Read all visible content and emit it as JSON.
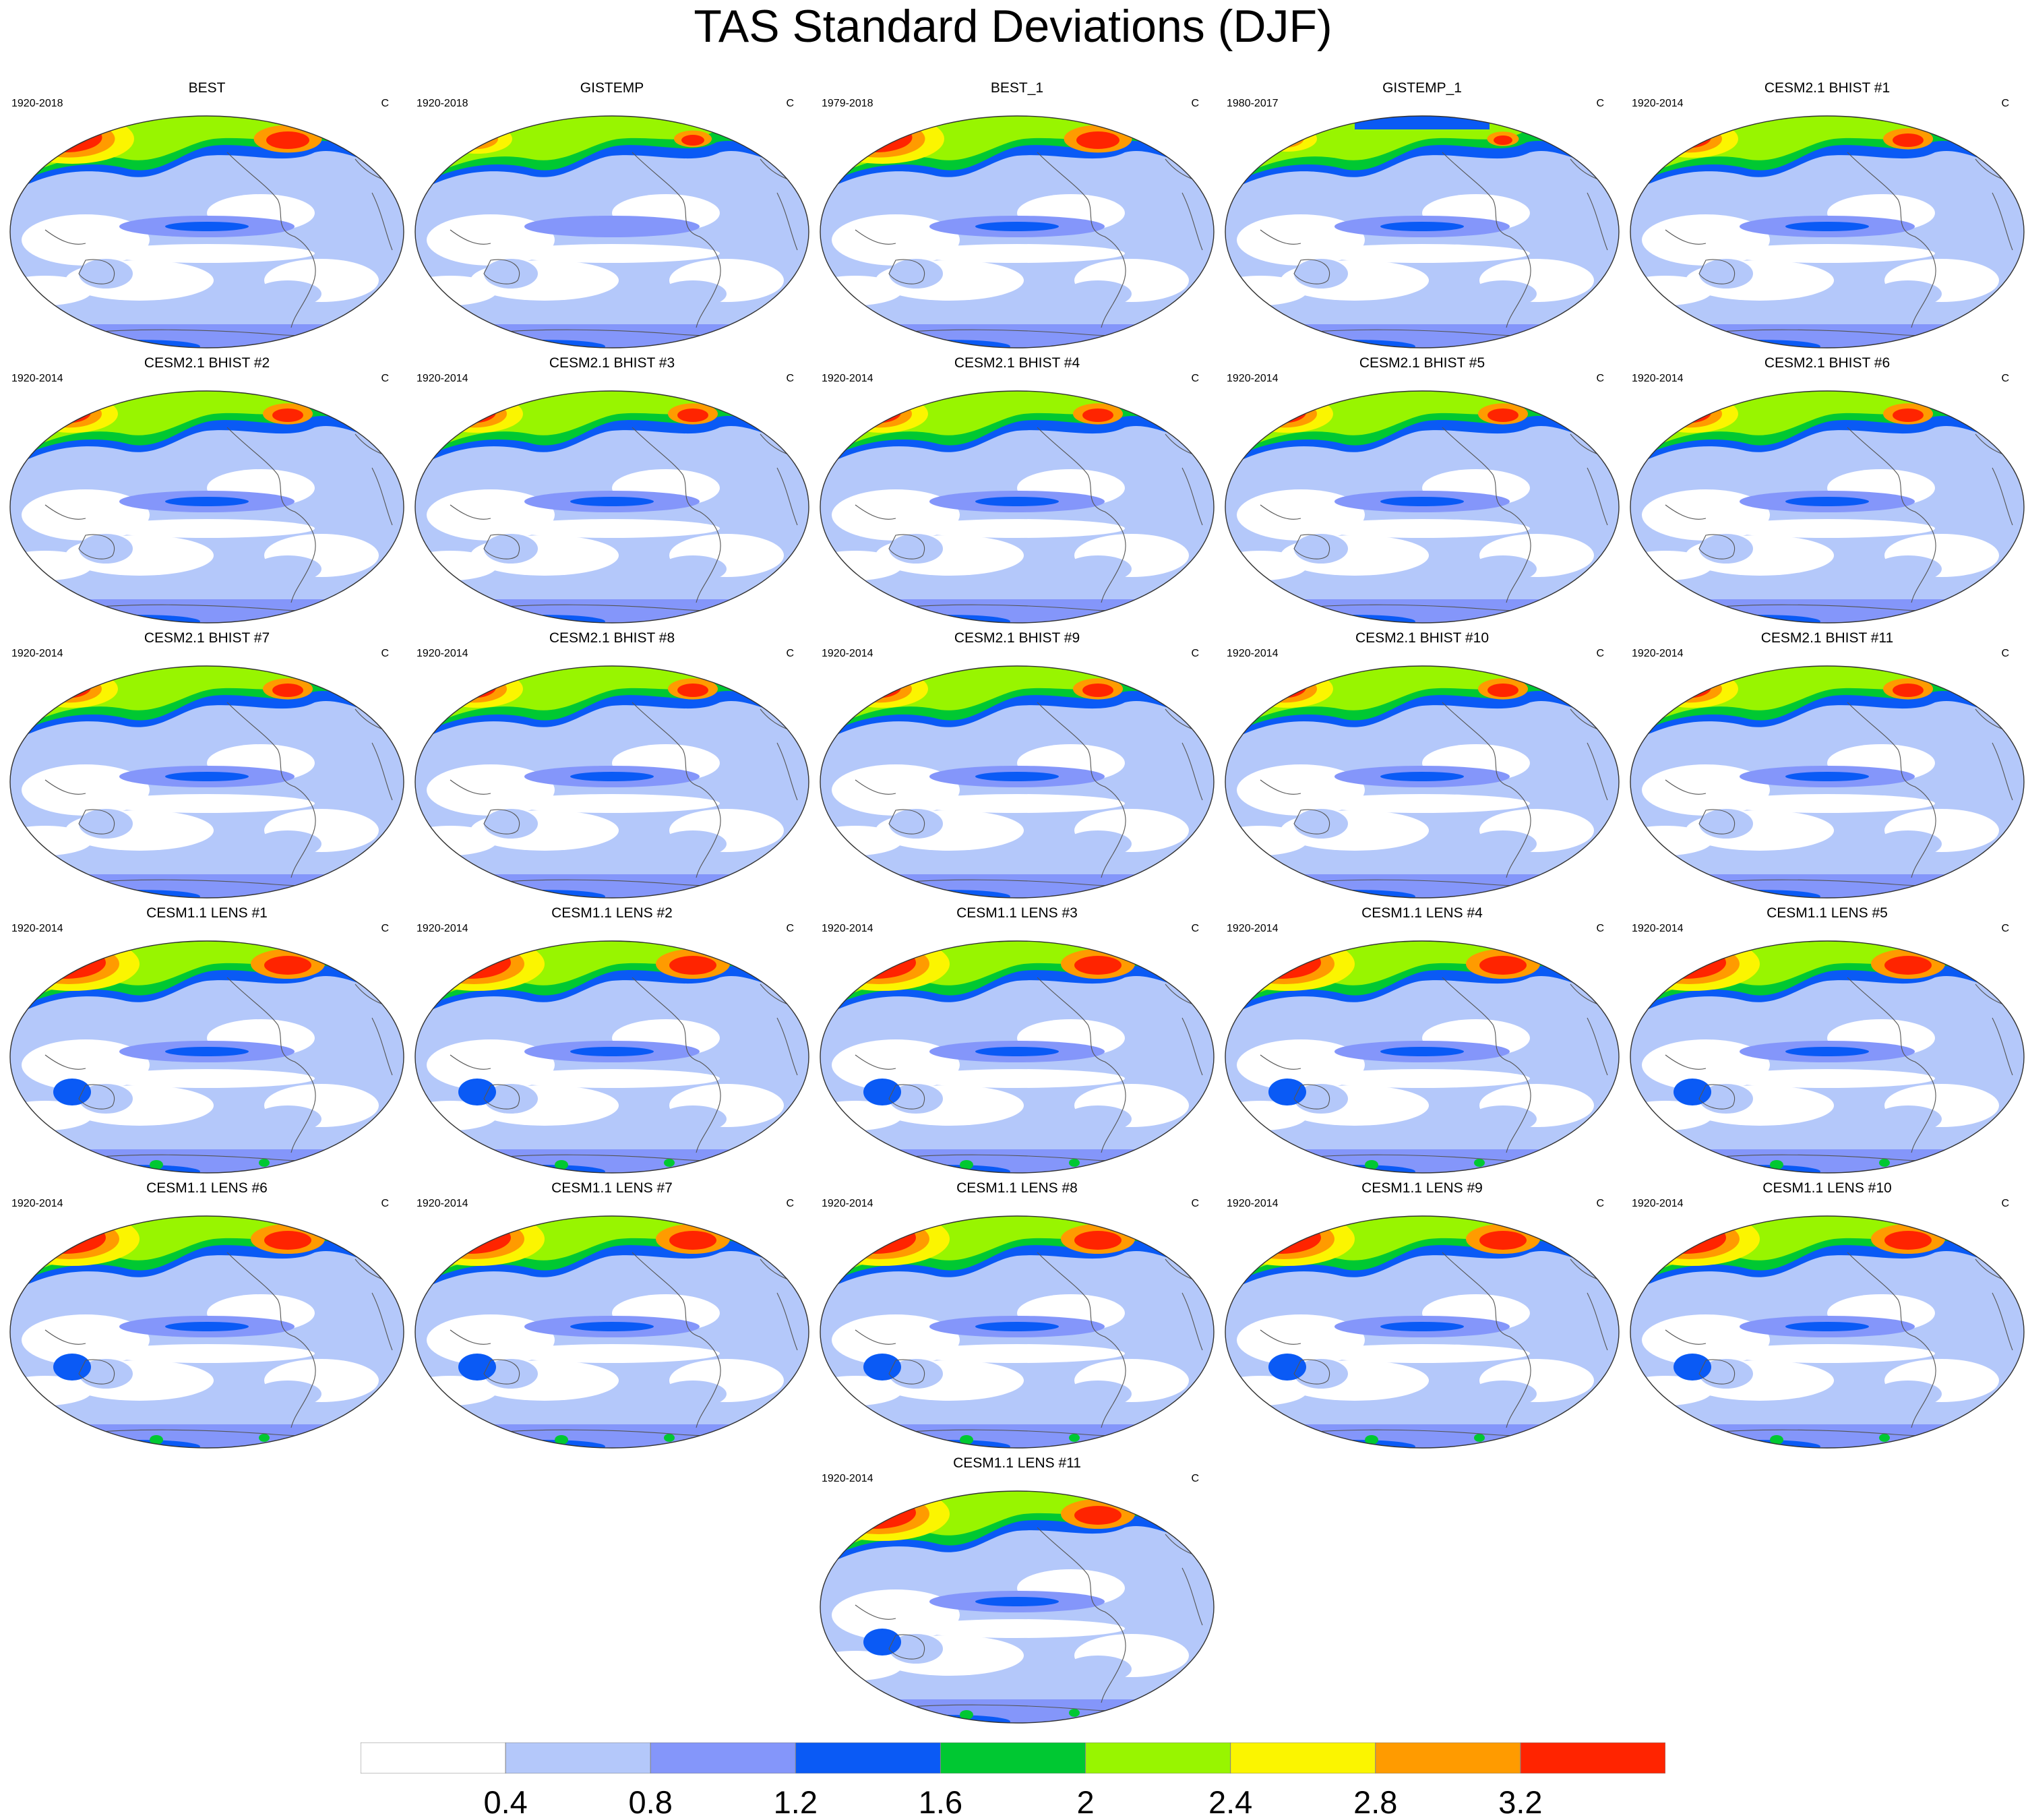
{
  "title": "TAS Standard Deviations (DJF)",
  "unit_label": "C",
  "panels": [
    {
      "title": "BEST",
      "period": "1920-2018",
      "pattern": "obs1"
    },
    {
      "title": "GISTEMP",
      "period": "1920-2018",
      "pattern": "obs2"
    },
    {
      "title": "BEST_1",
      "period": "1979-2018",
      "pattern": "obs1"
    },
    {
      "title": "GISTEMP_1",
      "period": "1980-2017",
      "pattern": "obs3"
    },
    {
      "title": "CESM2.1 BHIST #1",
      "period": "1920-2014",
      "pattern": "cesm2"
    },
    {
      "title": "CESM2.1 BHIST #2",
      "period": "1920-2014",
      "pattern": "cesm2"
    },
    {
      "title": "CESM2.1 BHIST #3",
      "period": "1920-2014",
      "pattern": "cesm2"
    },
    {
      "title": "CESM2.1 BHIST #4",
      "period": "1920-2014",
      "pattern": "cesm2"
    },
    {
      "title": "CESM2.1 BHIST #5",
      "period": "1920-2014",
      "pattern": "cesm2"
    },
    {
      "title": "CESM2.1 BHIST #6",
      "period": "1920-2014",
      "pattern": "cesm2"
    },
    {
      "title": "CESM2.1 BHIST #7",
      "period": "1920-2014",
      "pattern": "cesm2"
    },
    {
      "title": "CESM2.1 BHIST #8",
      "period": "1920-2014",
      "pattern": "cesm2"
    },
    {
      "title": "CESM2.1 BHIST #9",
      "period": "1920-2014",
      "pattern": "cesm2"
    },
    {
      "title": "CESM2.1 BHIST #10",
      "period": "1920-2014",
      "pattern": "cesm2"
    },
    {
      "title": "CESM2.1 BHIST #11",
      "period": "1920-2014",
      "pattern": "cesm2"
    },
    {
      "title": "CESM1.1 LENS #1",
      "period": "1920-2014",
      "pattern": "lens"
    },
    {
      "title": "CESM1.1 LENS #2",
      "period": "1920-2014",
      "pattern": "lens"
    },
    {
      "title": "CESM1.1 LENS #3",
      "period": "1920-2014",
      "pattern": "lens"
    },
    {
      "title": "CESM1.1 LENS #4",
      "period": "1920-2014",
      "pattern": "lens"
    },
    {
      "title": "CESM1.1 LENS #5",
      "period": "1920-2014",
      "pattern": "lens"
    },
    {
      "title": "CESM1.1 LENS #6",
      "period": "1920-2014",
      "pattern": "lens"
    },
    {
      "title": "CESM1.1 LENS #7",
      "period": "1920-2014",
      "pattern": "lens"
    },
    {
      "title": "CESM1.1 LENS #8",
      "period": "1920-2014",
      "pattern": "lens"
    },
    {
      "title": "CESM1.1 LENS #9",
      "period": "1920-2014",
      "pattern": "lens"
    },
    {
      "title": "CESM1.1 LENS #10",
      "period": "1920-2014",
      "pattern": "lens"
    },
    {
      "title": "CESM1.1 LENS #11",
      "period": "1920-2014",
      "pattern": "lens"
    }
  ],
  "colorbar": {
    "colors": [
      "#ffffff",
      "#b4c8fa",
      "#8496fa",
      "#0a5af5",
      "#00c832",
      "#98f500",
      "#fbf500",
      "#ff9b00",
      "#ff2400"
    ],
    "labels": [
      "0.4",
      "0.8",
      "1.2",
      "1.6",
      "2",
      "2.4",
      "2.8",
      "3.2"
    ]
  }
}
